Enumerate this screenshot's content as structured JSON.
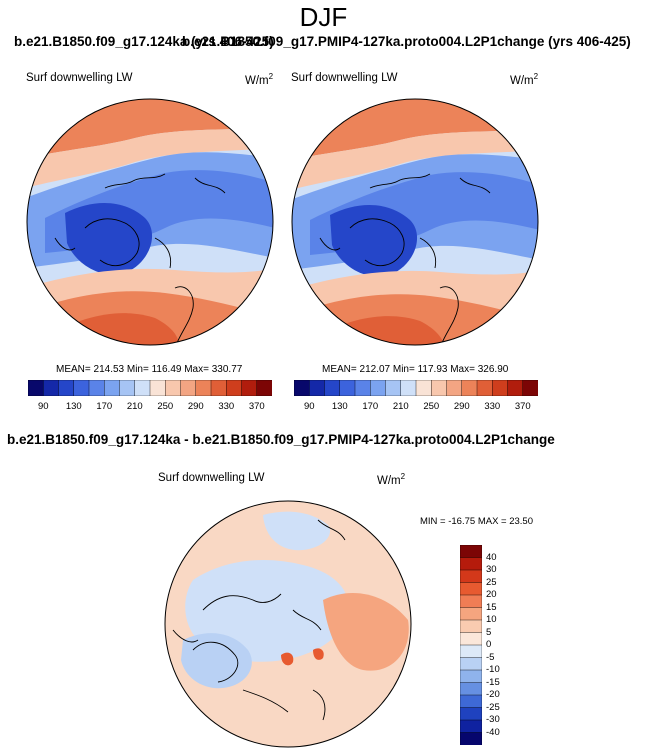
{
  "season": "DJF",
  "case_title_left": "b.e21.B1850.f09_g17.124ka (yrs 406-425)",
  "case_title_right": "b.e21.B1850.f09_g17.PMIP4-127ka.proto004.L2P1change (yrs 406-425)",
  "diff_title": "b.e21.B1850.f09_g17.124ka - b.e21.B1850.f09_g17.PMIP4-127ka.proto004.L2P1change",
  "variable_label": "Surf downwelling LW",
  "units": {
    "base": "W/m",
    "sup": "2"
  },
  "panels": [
    {
      "stats": "MEAN= 214.53  Min= 116.49  Max= 330.77"
    },
    {
      "stats": "MEAN= 212.07  Min= 117.93  Max= 326.90"
    }
  ],
  "diff_panel": {
    "stats": "MIN = -16.75 MAX =  23.50"
  },
  "colorbar_abs": {
    "labels": [
      "90",
      "130",
      "170",
      "210",
      "250",
      "290",
      "330",
      "370"
    ],
    "colors": [
      "#08086b",
      "#1428a8",
      "#2546c9",
      "#3c63dd",
      "#5a83e8",
      "#7ba3f0",
      "#a6c4f4",
      "#cfe0f8",
      "#f9e3d6",
      "#f8c7ad",
      "#f3a583",
      "#ec8359",
      "#e05f37",
      "#cf3e1d",
      "#b11d0d",
      "#7c0505"
    ]
  },
  "colorbar_diff": {
    "labels": [
      "40",
      "30",
      "25",
      "20",
      "15",
      "10",
      "5",
      "0",
      "-5",
      "-10",
      "-15",
      "-20",
      "-25",
      "-30",
      "-40"
    ],
    "colors": [
      "#7c0505",
      "#b51b0c",
      "#d3381a",
      "#e75a30",
      "#f07d55",
      "#f5a57f",
      "#f9cbb0",
      "#fbe7da",
      "#dde9f8",
      "#b9d1f4",
      "#8fb3ec",
      "#6690e2",
      "#3e69d6",
      "#1f42bf",
      "#0f22a0",
      "#06066d"
    ]
  },
  "map_colors": {
    "deep_blue": "#2546c9",
    "blue": "#3c63dd",
    "mid_blue": "#5a83e8",
    "light_blue": "#7ba3f0",
    "pale_blue": "#a6c4f4",
    "paler_blue": "#cfe0f8",
    "pale_peach": "#f9e3d6",
    "peach": "#f8c7ad",
    "salmon": "#f3a583",
    "orange": "#ec8359",
    "red_orange": "#e05f37",
    "red": "#cf3e1d",
    "diff_bg": "#f9d8c4",
    "diff_blue": "#cfe0f8",
    "diff_blue2": "#b9d1f4",
    "diff_orange": "#f5a57f",
    "diff_red": "#e75a30"
  }
}
